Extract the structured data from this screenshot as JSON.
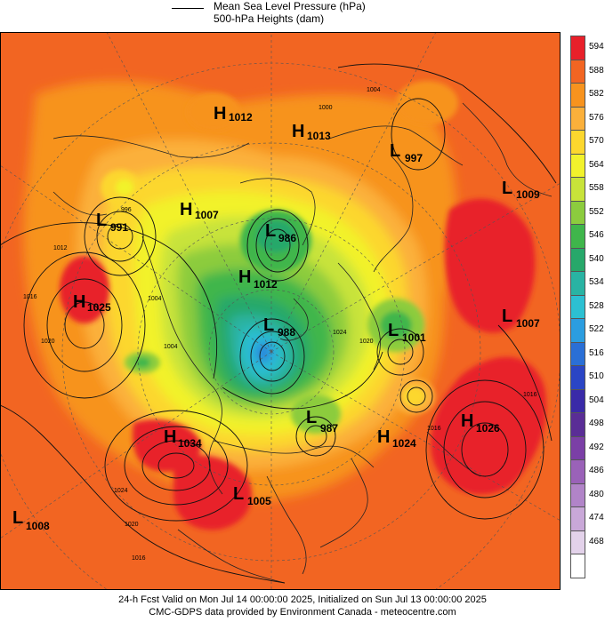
{
  "header": {
    "legend_line1": "Mean Sea Level Pressure (hPa)",
    "legend_line2": "500-hPa Heights (dam)"
  },
  "footer": {
    "line1": "24-h Fcst Valid on Mon Jul 14 00:00:00 2025, Initialized on Sun Jul 13 00:00:00 2025",
    "line2": "CMC-GDPS data provided by Environment Canada - meteocentre.com"
  },
  "colorbar": [
    {
      "label": "594",
      "color": "#e8202a"
    },
    {
      "label": "588",
      "color": "#f26522"
    },
    {
      "label": "582",
      "color": "#f7931e"
    },
    {
      "label": "576",
      "color": "#fbb03b"
    },
    {
      "label": "570",
      "color": "#fcd72e"
    },
    {
      "label": "564",
      "color": "#f2f22c"
    },
    {
      "label": "558",
      "color": "#c8e33a"
    },
    {
      "label": "552",
      "color": "#8ccc3e"
    },
    {
      "label": "546",
      "color": "#3fb64b"
    },
    {
      "label": "540",
      "color": "#27a86a"
    },
    {
      "label": "534",
      "color": "#29b3a3"
    },
    {
      "label": "528",
      "color": "#2cc0d2"
    },
    {
      "label": "522",
      "color": "#2b9de0"
    },
    {
      "label": "516",
      "color": "#2a6fd6"
    },
    {
      "label": "510",
      "color": "#2a45c5"
    },
    {
      "label": "504",
      "color": "#3a2aa8"
    },
    {
      "label": "498",
      "color": "#5a2d96"
    },
    {
      "label": "492",
      "color": "#7b3fa6"
    },
    {
      "label": "486",
      "color": "#9a62b8"
    },
    {
      "label": "480",
      "color": "#b184c8"
    },
    {
      "label": "474",
      "color": "#c9a8d8"
    },
    {
      "label": "468",
      "color": "#e3d2ea"
    },
    {
      "label": "",
      "color": "#ffffff"
    }
  ],
  "systems": [
    {
      "letter": "H",
      "value": "1012"
    },
    {
      "letter": "H",
      "value": "1013"
    },
    {
      "letter": "L",
      "value": "997"
    },
    {
      "letter": "L",
      "value": "1009"
    },
    {
      "letter": "L",
      "value": "991"
    },
    {
      "letter": "H",
      "value": "1007"
    },
    {
      "letter": "L",
      "value": "986"
    },
    {
      "letter": "H",
      "value": "1025"
    },
    {
      "letter": "H",
      "value": "1012"
    },
    {
      "letter": "L",
      "value": "988"
    },
    {
      "letter": "L",
      "value": "1001"
    },
    {
      "letter": "L",
      "value": "1007"
    },
    {
      "letter": "L",
      "value": "987"
    },
    {
      "letter": "H",
      "value": "1024"
    },
    {
      "letter": "H",
      "value": "1026"
    },
    {
      "letter": "H",
      "value": "1034"
    },
    {
      "letter": "L",
      "value": "1005"
    },
    {
      "letter": "L",
      "value": "1008"
    }
  ],
  "isobar_labels": [
    "1004",
    "1000",
    "996",
    "1012",
    "1016",
    "1020",
    "1004",
    "1020",
    "1024",
    "1016",
    "1016",
    "1024",
    "1020",
    "1016",
    "1012"
  ]
}
